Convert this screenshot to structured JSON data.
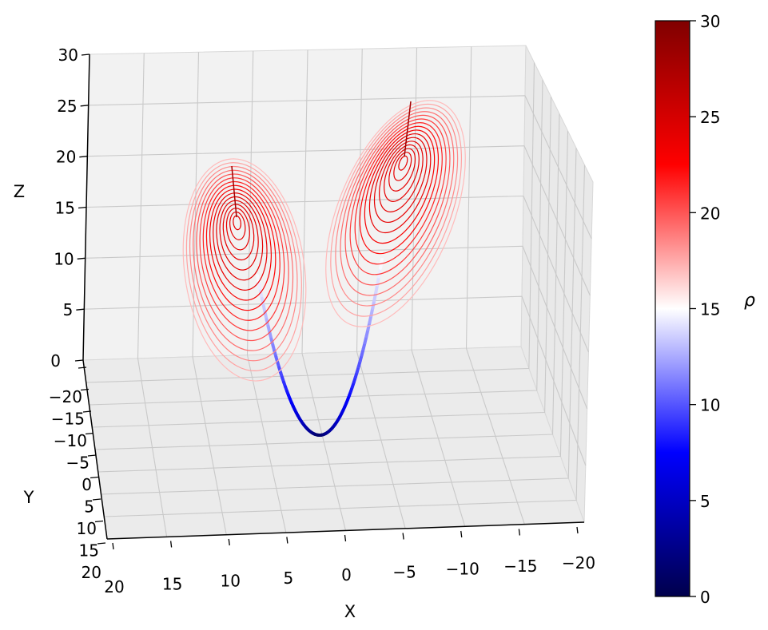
{
  "chart_data": {
    "type": "line3d",
    "title": "",
    "xlabel": "X",
    "ylabel": "Y",
    "zlabel": "Z",
    "xlim": [
      -20,
      20
    ],
    "ylim": [
      -20,
      20
    ],
    "zlim": [
      0,
      30
    ],
    "x_ticks": [
      "20",
      "15",
      "10",
      "5",
      "0",
      "−5",
      "−10",
      "−15",
      "−20"
    ],
    "y_ticks": [
      "−20",
      "−15",
      "−10",
      "−5",
      "0",
      "5",
      "10",
      "15",
      "20"
    ],
    "z_ticks": [
      "0",
      "5",
      "10",
      "15",
      "20",
      "25",
      "30"
    ],
    "grid": true,
    "colormap": "seismic",
    "colors": {
      "low": "#00004c",
      "mid_low": "#0000ff",
      "mid": "#ffffff",
      "mid_high": "#ff0000",
      "high": "#800000"
    },
    "colorbar": {
      "label": "ρ",
      "range": [
        0,
        30
      ],
      "ticks": [
        "0",
        "5",
        "10",
        "15",
        "20",
        "25",
        "30"
      ]
    },
    "series_description": "Lorenz attractor trajectories colored by rho; low rho near origin (blue), two spiral lobes (red) at high rho"
  }
}
